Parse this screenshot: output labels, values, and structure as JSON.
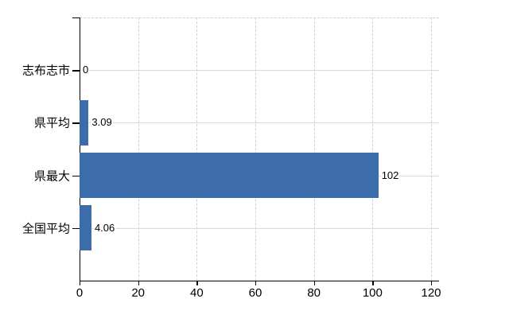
{
  "chart_data": {
    "type": "bar",
    "orientation": "horizontal",
    "title": "",
    "xlabel": "",
    "ylabel": "",
    "categories": [
      "志布志市",
      "県平均",
      "県最大",
      "全国平均"
    ],
    "values": [
      0,
      3.09,
      102,
      4.06
    ],
    "value_labels": [
      "0",
      "3.09",
      "102",
      "4.06"
    ],
    "xlim": [
      0,
      120
    ],
    "x_ticks": [
      0,
      20,
      40,
      60,
      80,
      100,
      120
    ],
    "x_tick_labels": [
      "0",
      "20",
      "40",
      "60",
      "80",
      "100",
      "120"
    ],
    "grid": "vertical dashed gridlines at each x tick; light horizontal line at each category center; dashed top border",
    "legend_position": "none",
    "colors": {
      "bar": "#3c6daa",
      "axis": "#000000",
      "gridline_vertical": "#d0cfd2",
      "gridline_horizontal": "#d8dbd6",
      "background": "#ffffff",
      "text": "#000000"
    }
  }
}
